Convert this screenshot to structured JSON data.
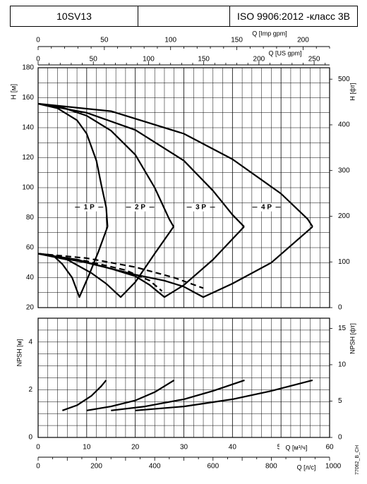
{
  "header": {
    "model": "10SV13",
    "standard": "ISO 9906:2012 -класс 3В"
  },
  "code": "77062_B_CH",
  "chart_data": [
    {
      "type": "line",
      "name": "head",
      "ylabel_left": "H [м]",
      "ylabel_right": "H [фт]",
      "ylim": [
        20,
        180
      ],
      "yticks_left": [
        20,
        40,
        60,
        80,
        100,
        120,
        140,
        160,
        180
      ],
      "ylim_right": [
        0,
        525
      ],
      "yticks_right": [
        0,
        100,
        200,
        300,
        400,
        500
      ],
      "x_top1_label": "Q [Imp gpm]",
      "x_top1_range": [
        0,
        220
      ],
      "x_top1_ticks": [
        0,
        50,
        100,
        150,
        200
      ],
      "x_top2_label": "Q [US gpm]",
      "x_top2_range": [
        0,
        264
      ],
      "x_top2_ticks": [
        0,
        50,
        100,
        150,
        200,
        250
      ],
      "x_label": "Q [м³/ч]",
      "xlim": [
        0,
        60
      ],
      "grid": true,
      "series": [
        {
          "name": "1 P",
          "style": "solid",
          "label_at": [
            10.5,
            87
          ],
          "points": [
            [
              0,
              156
            ],
            [
              4,
              153
            ],
            [
              8,
              145
            ],
            [
              10,
              136
            ],
            [
              12,
              118
            ],
            [
              13,
              102
            ],
            [
              14,
              87
            ],
            [
              14.3,
              74
            ]
          ]
        },
        {
          "name": "2 P",
          "style": "solid",
          "label_at": [
            21,
            87
          ],
          "points": [
            [
              0,
              156
            ],
            [
              5,
              153.5
            ],
            [
              10,
              148
            ],
            [
              15,
              138
            ],
            [
              20,
              122
            ],
            [
              24,
              100
            ],
            [
              27,
              79
            ],
            [
              27.9,
              74
            ]
          ]
        },
        {
          "name": "3 P",
          "style": "solid",
          "label_at": [
            33.5,
            87
          ],
          "points": [
            [
              0,
              156
            ],
            [
              10,
              150
            ],
            [
              20,
              138.5
            ],
            [
              30,
              118
            ],
            [
              36,
              98
            ],
            [
              40,
              82
            ],
            [
              42.4,
              74
            ]
          ]
        },
        {
          "name": "4 P",
          "style": "solid",
          "label_at": [
            47,
            87
          ],
          "points": [
            [
              0,
              156
            ],
            [
              15,
              151
            ],
            [
              30,
              136
            ],
            [
              40,
              119
            ],
            [
              50,
              96
            ],
            [
              55.5,
              79
            ],
            [
              56.5,
              74
            ]
          ]
        },
        {
          "name": "",
          "style": "solid",
          "points": [
            [
              0,
              56
            ],
            [
              3,
              55
            ],
            [
              5,
              49
            ],
            [
              7,
              40
            ],
            [
              8.5,
              27
            ],
            [
              10.5,
              42
            ],
            [
              12.5,
              58
            ],
            [
              14.3,
              74
            ]
          ]
        },
        {
          "name": "",
          "style": "solid",
          "points": [
            [
              0,
              56
            ],
            [
              6,
              52
            ],
            [
              11,
              43
            ],
            [
              14,
              36
            ],
            [
              17,
              27
            ],
            [
              20,
              37
            ],
            [
              24,
              56
            ],
            [
              27.9,
              74
            ]
          ]
        },
        {
          "name": "",
          "style": "solid",
          "points": [
            [
              0,
              56
            ],
            [
              8,
              52
            ],
            [
              15,
              46
            ],
            [
              20,
              41
            ],
            [
              23,
              35
            ],
            [
              26,
              27
            ],
            [
              30,
              35
            ],
            [
              36,
              52
            ],
            [
              42.4,
              74
            ]
          ]
        },
        {
          "name": "",
          "style": "solid",
          "points": [
            [
              0,
              56
            ],
            [
              10,
              50
            ],
            [
              20,
              42
            ],
            [
              26,
              38
            ],
            [
              30,
              34
            ],
            [
              34,
              27
            ],
            [
              40,
              36
            ],
            [
              48,
              50
            ],
            [
              56.5,
              74
            ]
          ]
        },
        {
          "name": "",
          "style": "dashed",
          "points": [
            [
              0,
              56
            ],
            [
              10,
              53
            ],
            [
              20,
              47
            ],
            [
              28,
              40
            ],
            [
              34,
              33
            ]
          ]
        },
        {
          "name": "",
          "style": "dashed",
          "points": [
            [
              0,
              56
            ],
            [
              10,
              51
            ],
            [
              18,
              45
            ],
            [
              23,
              38
            ],
            [
              25.5,
              31
            ]
          ]
        }
      ]
    },
    {
      "type": "line",
      "name": "npsh",
      "ylabel_left": "NPSH [м]",
      "ylabel_right": "NPSH [фт]",
      "ylim": [
        0,
        5
      ],
      "yticks_left": [
        0,
        2,
        4
      ],
      "ylim_right": [
        0,
        16.4
      ],
      "yticks_right": [
        0,
        5,
        10,
        15
      ],
      "x_label": "Q [м³/ч]",
      "xlim": [
        0,
        60
      ],
      "xticks": [
        0,
        10,
        20,
        30,
        40,
        50,
        60
      ],
      "x2_label": "Q [л/с]",
      "x2_range": [
        0,
        1000
      ],
      "x2_ticks": [
        0,
        200,
        400,
        600,
        800,
        1000
      ],
      "grid": true,
      "series": [
        {
          "name": "",
          "points": [
            [
              5,
              1.13
            ],
            [
              8,
              1.35
            ],
            [
              11,
              1.75
            ],
            [
              13,
              2.15
            ],
            [
              14,
              2.4
            ]
          ]
        },
        {
          "name": "",
          "points": [
            [
              10,
              1.13
            ],
            [
              15,
              1.3
            ],
            [
              20,
              1.55
            ],
            [
              24,
              1.9
            ],
            [
              28,
              2.4
            ]
          ]
        },
        {
          "name": "",
          "points": [
            [
              15,
              1.13
            ],
            [
              22,
              1.3
            ],
            [
              30,
              1.6
            ],
            [
              36,
              1.95
            ],
            [
              42.5,
              2.4
            ]
          ]
        },
        {
          "name": "",
          "points": [
            [
              20,
              1.13
            ],
            [
              30,
              1.3
            ],
            [
              40,
              1.6
            ],
            [
              48,
              1.95
            ],
            [
              56.5,
              2.4
            ]
          ]
        }
      ]
    }
  ]
}
